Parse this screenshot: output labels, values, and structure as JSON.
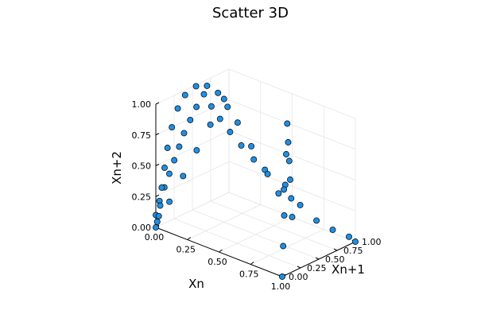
{
  "chart_data": {
    "type": "scatter",
    "title": "Scatter 3D",
    "xlabel": "Xn",
    "ylabel": "Xn+1",
    "zlabel": "Xn+2",
    "x_ticks": [
      "0.00",
      "0.25",
      "0.50",
      "0.75",
      "1.00"
    ],
    "y_ticks": [
      "0.00",
      "0.25",
      "0.50",
      "0.75",
      "1.00"
    ],
    "z_ticks": [
      "0.00",
      "0.25",
      "0.50",
      "0.75",
      "1.00"
    ],
    "xlim": [
      0,
      1
    ],
    "ylim": [
      0,
      1
    ],
    "zlim": [
      0,
      1
    ],
    "grid": true,
    "legend": "none",
    "marker_color": "#1f8fe3",
    "marker_edge": "#000000",
    "series": [
      {
        "x": [
          0.0,
          0.05,
          0.1,
          0.15,
          0.2,
          0.25,
          0.3,
          0.35,
          0.4,
          0.45,
          0.5,
          0.55,
          0.6,
          0.65,
          0.7,
          0.75,
          0.8,
          0.85,
          0.9,
          0.95,
          1.0,
          0.0,
          0.0,
          0.01,
          0.02,
          0.03,
          0.04,
          0.05,
          0.07,
          0.09,
          0.12,
          0.15,
          0.19,
          0.24,
          0.3,
          0.37,
          0.45,
          0.55,
          0.65,
          0.75,
          0.85,
          0.95,
          1.0,
          0.0,
          0.0,
          0.0,
          0.0,
          0.0,
          0.0,
          0.0,
          0.0,
          0.0,
          0.0,
          0.0,
          0.0,
          0.0
        ],
        "y": [
          0.0,
          0.1,
          0.2,
          0.3,
          0.4,
          0.5,
          0.6,
          0.7,
          0.8,
          0.9,
          1.0,
          0.9,
          0.8,
          0.7,
          0.6,
          0.5,
          0.4,
          0.3,
          0.2,
          0.1,
          0.0,
          0.0,
          0.05,
          0.1,
          0.15,
          0.2,
          0.25,
          0.3,
          0.35,
          0.4,
          0.45,
          0.5,
          0.55,
          0.6,
          0.65,
          0.7,
          0.75,
          0.8,
          0.85,
          0.9,
          0.95,
          1.0,
          1.0,
          0.02,
          0.04,
          0.06,
          0.08,
          0.12,
          0.16,
          0.22,
          0.3,
          0.4,
          0.55,
          0.7,
          0.85,
          0.98
        ],
        "z": [
          0.0,
          0.2,
          0.4,
          0.6,
          0.8,
          1.0,
          0.8,
          0.6,
          0.4,
          0.2,
          0.0,
          0.2,
          0.4,
          0.6,
          0.8,
          1.0,
          0.8,
          0.6,
          0.4,
          0.2,
          0.0,
          0.1,
          0.2,
          0.3,
          0.4,
          0.5,
          0.6,
          0.7,
          0.8,
          0.9,
          1.0,
          0.9,
          0.8,
          0.7,
          0.6,
          0.5,
          0.4,
          0.3,
          0.2,
          0.1,
          0.05,
          0.02,
          0.0,
          0.04,
          0.08,
          0.16,
          0.3,
          0.45,
          0.6,
          0.75,
          0.88,
          0.96,
          0.99,
          0.95,
          0.85,
          0.7
        ]
      }
    ]
  }
}
